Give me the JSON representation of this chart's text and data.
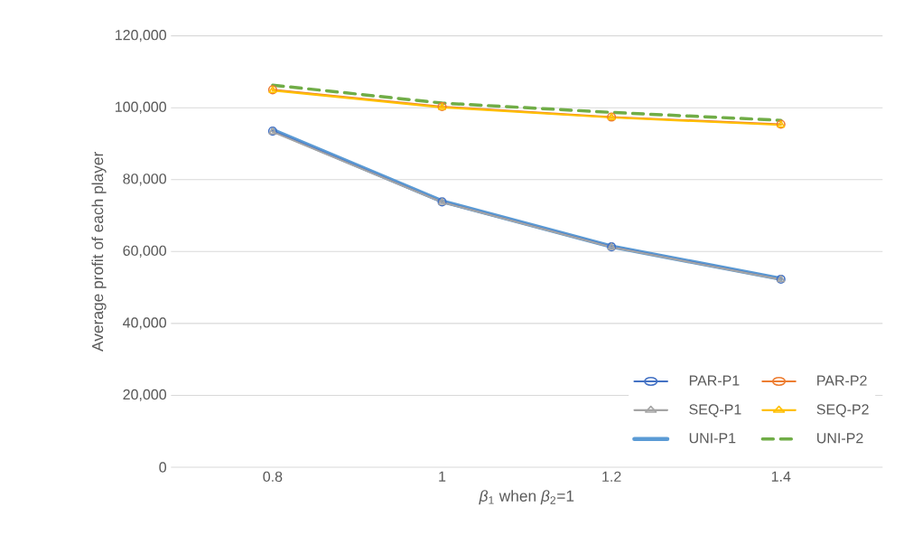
{
  "chart_data": {
    "type": "line",
    "xlabel": "*β*$_{1}$ when *β*$_{2}$=1",
    "ylabel": "Average profit of each player",
    "categories": [
      "0.8",
      "1",
      "1.2",
      "1.4"
    ],
    "series": [
      {
        "name": "PAR-P1",
        "color": "#4472c4",
        "marker": "circle",
        "line_style": "solid",
        "values": [
          93500,
          73800,
          61300,
          52300
        ]
      },
      {
        "name": "PAR-P2",
        "color": "#ed7d31",
        "marker": "circle",
        "line_style": "solid",
        "values": [
          105000,
          100300,
          97400,
          95400
        ]
      },
      {
        "name": "SEQ-P1",
        "color": "#a5a5a5",
        "marker": "triangle",
        "line_style": "solid",
        "values": [
          93300,
          73700,
          61200,
          52200
        ]
      },
      {
        "name": "SEQ-P2",
        "color": "#ffc000",
        "marker": "triangle",
        "line_style": "solid",
        "values": [
          104800,
          100100,
          97300,
          95200
        ]
      },
      {
        "name": "UNI-P1",
        "color": "#5b9bd5",
        "line_style": "solid",
        "values": [
          93800,
          74000,
          61400,
          52400
        ]
      },
      {
        "name": "UNI-P2",
        "color": "#70ad47",
        "line_style": "dashed",
        "values": [
          106300,
          101300,
          98700,
          96500
        ]
      }
    ],
    "ylim": [
      0,
      120000
    ],
    "yticks": [
      {
        "value": 0,
        "label": "0"
      },
      {
        "value": 20000,
        "label": "20,000"
      },
      {
        "value": 40000,
        "label": "40,000"
      },
      {
        "value": 60000,
        "label": "60,000"
      },
      {
        "value": 80000,
        "label": "80,000"
      },
      {
        "value": 100000,
        "label": "100,000"
      },
      {
        "value": 120000,
        "label": "120,000"
      }
    ],
    "grid": "y",
    "legend": "bottom right"
  }
}
